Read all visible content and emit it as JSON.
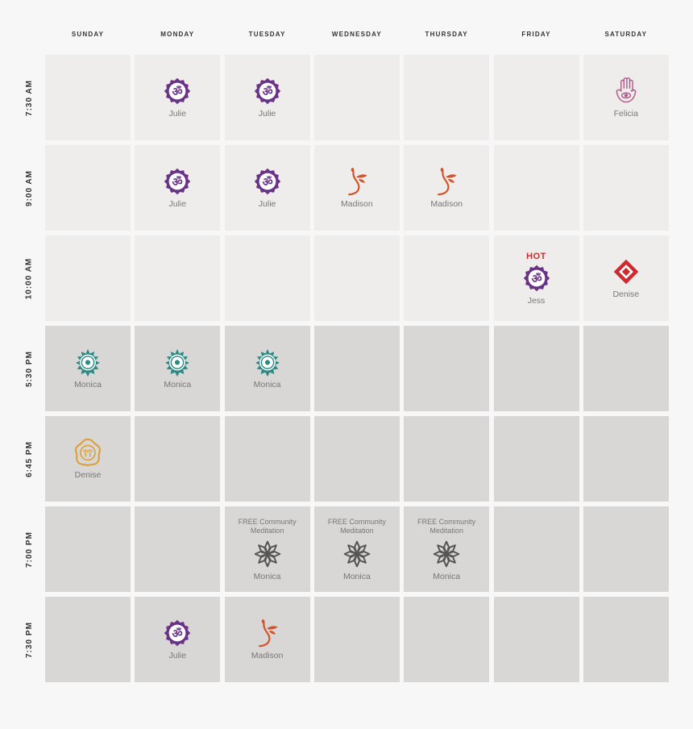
{
  "days": [
    "SUNDAY",
    "MONDAY",
    "TUESDAY",
    "WEDNESDAY",
    "THURSDAY",
    "FRIDAY",
    "SATURDAY"
  ],
  "times": [
    "7:30 AM",
    "9:00 AM",
    "10:00 AM",
    "5:30 PM",
    "6:45 PM",
    "7:00 PM",
    "7:30 PM"
  ],
  "colors": {
    "om": "#6a3486",
    "flower": "#d45227",
    "hamsa": "#b45a8c",
    "red_diamond": "#cf2a30",
    "mandala": "#2a8a84",
    "svadhisthana": "#dca13b",
    "lotus": "#555555"
  },
  "schedule": [
    [
      null,
      {
        "icon": "om-icon",
        "instructor": "Julie"
      },
      {
        "icon": "om-icon",
        "instructor": "Julie"
      },
      null,
      null,
      null,
      {
        "icon": "hamsa-icon",
        "instructor": "Felicia"
      }
    ],
    [
      null,
      {
        "icon": "om-icon",
        "instructor": "Julie"
      },
      {
        "icon": "om-icon",
        "instructor": "Julie"
      },
      {
        "icon": "flower-icon",
        "instructor": "Madison"
      },
      {
        "icon": "flower-icon",
        "instructor": "Madison"
      },
      null,
      null
    ],
    [
      null,
      null,
      null,
      null,
      null,
      {
        "icon": "om-icon",
        "instructor": "Jess",
        "tag": "HOT"
      },
      {
        "icon": "red-diamond-icon",
        "instructor": "Denise"
      }
    ],
    [
      {
        "icon": "teal-mandala-icon",
        "instructor": "Monica"
      },
      {
        "icon": "teal-mandala-icon",
        "instructor": "Monica"
      },
      {
        "icon": "teal-mandala-icon",
        "instructor": "Monica"
      },
      null,
      null,
      null,
      null
    ],
    [
      {
        "icon": "svadhisthana-icon",
        "instructor": "Denise"
      },
      null,
      null,
      null,
      null,
      null,
      null
    ],
    [
      null,
      null,
      {
        "icon": "lotus-icon",
        "instructor": "Monica",
        "note": "FREE Community Meditation"
      },
      {
        "icon": "lotus-icon",
        "instructor": "Monica",
        "note": "FREE Community Meditation"
      },
      {
        "icon": "lotus-icon",
        "instructor": "Monica",
        "note": "FREE Community Meditation"
      },
      null,
      null
    ],
    [
      null,
      {
        "icon": "om-icon",
        "instructor": "Julie"
      },
      {
        "icon": "flower-icon",
        "instructor": "Madison"
      },
      null,
      null,
      null,
      null
    ]
  ]
}
